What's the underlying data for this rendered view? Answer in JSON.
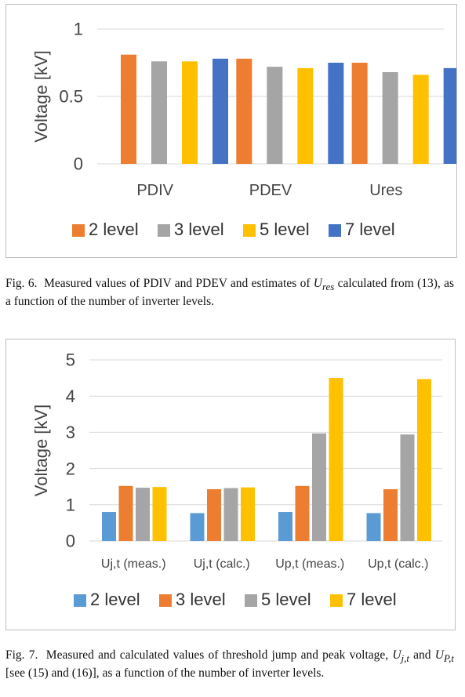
{
  "chart_data": [
    {
      "type": "bar",
      "title": "",
      "xlabel": "",
      "ylabel": "Voltage [kV]",
      "ylim": [
        0,
        1
      ],
      "yticks": [
        "0",
        "0.5",
        "1"
      ],
      "ytick_values": [
        0,
        0.5,
        1
      ],
      "categories": [
        "PDIV",
        "PDEV",
        "Ures"
      ],
      "series": [
        {
          "name": "2 level",
          "color": "#ed7d31",
          "values": [
            0.81,
            0.78,
            0.75
          ]
        },
        {
          "name": "3 level",
          "color": "#a5a5a5",
          "values": [
            0.76,
            0.72,
            0.68
          ]
        },
        {
          "name": "5 level",
          "color": "#ffc000",
          "values": [
            0.76,
            0.71,
            0.66
          ]
        },
        {
          "name": "7 level",
          "color": "#4472c4",
          "values": [
            0.78,
            0.75,
            0.71
          ]
        }
      ],
      "grid": true,
      "legend": "bottom"
    },
    {
      "type": "bar",
      "title": "",
      "xlabel": "",
      "ylabel": "Voltage [kV]",
      "ylim": [
        0,
        5
      ],
      "yticks": [
        "0",
        "1",
        "2",
        "3",
        "4",
        "5"
      ],
      "ytick_values": [
        0,
        1,
        2,
        3,
        4,
        5
      ],
      "categories": [
        "Uj,t (meas.)",
        "Uj,t (calc.)",
        "Up,t (meas.)",
        "Up,t (calc.)"
      ],
      "series": [
        {
          "name": "2 level",
          "color": "#5b9bd5",
          "values": [
            0.8,
            0.77,
            0.8,
            0.77
          ]
        },
        {
          "name": "3 level",
          "color": "#ed7d31",
          "values": [
            1.52,
            1.43,
            1.52,
            1.43
          ]
        },
        {
          "name": "5 level",
          "color": "#a5a5a5",
          "values": [
            1.47,
            1.46,
            2.97,
            2.94
          ]
        },
        {
          "name": "7 level",
          "color": "#ffc000",
          "values": [
            1.49,
            1.48,
            4.5,
            4.47
          ]
        }
      ],
      "grid": true,
      "legend": "bottom"
    }
  ],
  "captions": {
    "fig6": {
      "label": "Fig. 6.",
      "text_a": "Measured values of PDIV and PDEV and estimates of",
      "symbol": "U",
      "sub": "res",
      "text_b": "calculated from (13), as a function of the number of inverter levels."
    },
    "fig7": {
      "label": "Fig. 7.",
      "text_a": "Measured and calculated values of threshold jump and peak voltage,",
      "symbol_1": "U",
      "sub_1": "j,t",
      "mid": "and",
      "symbol_2": "U",
      "sub_2": "P,t",
      "text_b": "[see (15) and (16)], as a function of the number of inverter levels."
    }
  }
}
